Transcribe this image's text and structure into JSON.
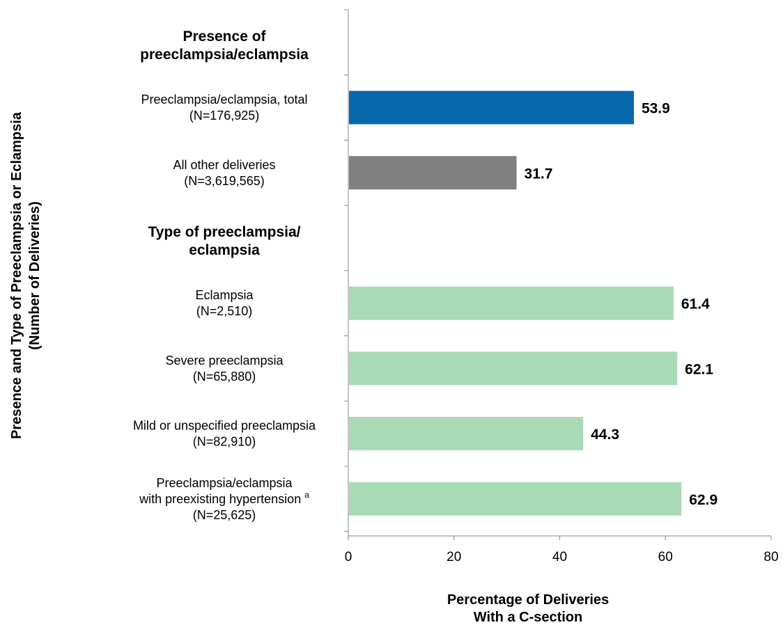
{
  "chart_data": {
    "type": "bar",
    "orientation": "horizontal",
    "ylabel_line1": "Presence and Type of Preeclampsia or Eclampsia",
    "ylabel_line2": "(Number of Deliveries)",
    "xlabel_line1": "Percentage of Deliveries",
    "xlabel_line2": "With a C-section",
    "xlim": [
      0,
      80
    ],
    "xticks": [
      "0",
      "20",
      "40",
      "60",
      "80"
    ],
    "grid": false,
    "colors": {
      "total": "#0868ac",
      "other": "#808080",
      "type": "#a8dbb5"
    },
    "groups": [
      {
        "heading_line1": "Presence of",
        "heading_line2": "preeclampsia/eclampsia"
      },
      {
        "heading_line1": "Type of preeclampsia/",
        "heading_line2": "eclampsia"
      }
    ],
    "bars": [
      {
        "label_lines": [
          "Preeclampsia/eclampsia, total",
          "(N=176,925)"
        ],
        "value": 53.9,
        "value_label": "53.9",
        "color_key": "total"
      },
      {
        "label_lines": [
          "All other deliveries",
          "(N=3,619,565)"
        ],
        "value": 31.7,
        "value_label": "31.7",
        "color_key": "other"
      },
      {
        "label_lines": [
          "Eclampsia",
          "(N=2,510)"
        ],
        "value": 61.4,
        "value_label": "61.4",
        "color_key": "type"
      },
      {
        "label_lines": [
          "Severe preeclampsia",
          "(N=65,880)"
        ],
        "value": 62.1,
        "value_label": "62.1",
        "color_key": "type"
      },
      {
        "label_lines": [
          "Mild or unspecified preeclampsia",
          "(N=82,910)"
        ],
        "value": 44.3,
        "value_label": "44.3",
        "color_key": "type"
      },
      {
        "label_lines": [
          "Preeclampsia/eclampsia",
          "with preexisting hypertension",
          "(N=25,625)"
        ],
        "superscript": "a",
        "value": 62.9,
        "value_label": "62.9",
        "color_key": "type"
      }
    ]
  }
}
